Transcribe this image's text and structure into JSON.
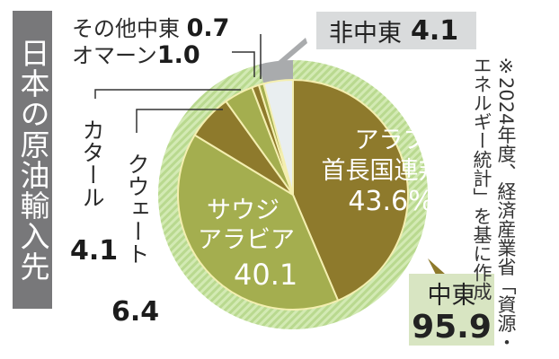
{
  "title": "日本の原油輸入先",
  "colors": {
    "dark_olive": "#8e7a2c",
    "light_olive": "#a4ae4f",
    "non_mideast": "#e9eef0",
    "ring_green": "#c9e3a6",
    "ring_gray": "#a9abad",
    "title_bg": "#78787a",
    "middle_east_box": "#d8e5c2",
    "non_mideast_box": "#d9dbdc"
  },
  "labels": {
    "uae_name_1": "アラブ",
    "uae_name_2": "首長国連邦",
    "uae_value": "43.6%",
    "saudi_name_1": "サウジ",
    "saudi_name_2": "アラビア",
    "saudi_value": "40.1",
    "kuwait_name": "クウェート",
    "kuwait_value": "6.4",
    "qatar_name": "カタール",
    "qatar_value": "4.1",
    "oman_name": "オマーン",
    "oman_value": "1.0",
    "other_me_name": "その他中東",
    "other_me_value": "0.7",
    "non_me_name": "非中東",
    "non_me_value": "4.1",
    "me_name": "中東",
    "me_value": "95.9"
  },
  "note": "※2024年度、経済産業省「資源・エネルギー統計」を基に作成",
  "chart_data": {
    "type": "pie",
    "title": "日本の原油輸入先",
    "unit": "%",
    "start_angle": "12 o'clock, clockwise",
    "categories": [
      "アラブ首長国連邦",
      "サウジアラビア",
      "クウェート",
      "カタール",
      "オマーン",
      "その他中東",
      "非中東"
    ],
    "values": [
      43.6,
      40.1,
      6.4,
      4.1,
      1.0,
      0.7,
      4.1
    ],
    "groups": [
      {
        "name": "中東",
        "value": 95.9,
        "members": [
          "アラブ首長国連邦",
          "サウジアラビア",
          "クウェート",
          "カタール",
          "オマーン",
          "その他中東"
        ]
      },
      {
        "name": "非中東",
        "value": 4.1,
        "members": [
          "非中東"
        ]
      }
    ],
    "annotations": [
      "※2024年度、経済産業省「資源・エネルギー統計」を基に作成"
    ],
    "legend": "none (direct labels)"
  }
}
